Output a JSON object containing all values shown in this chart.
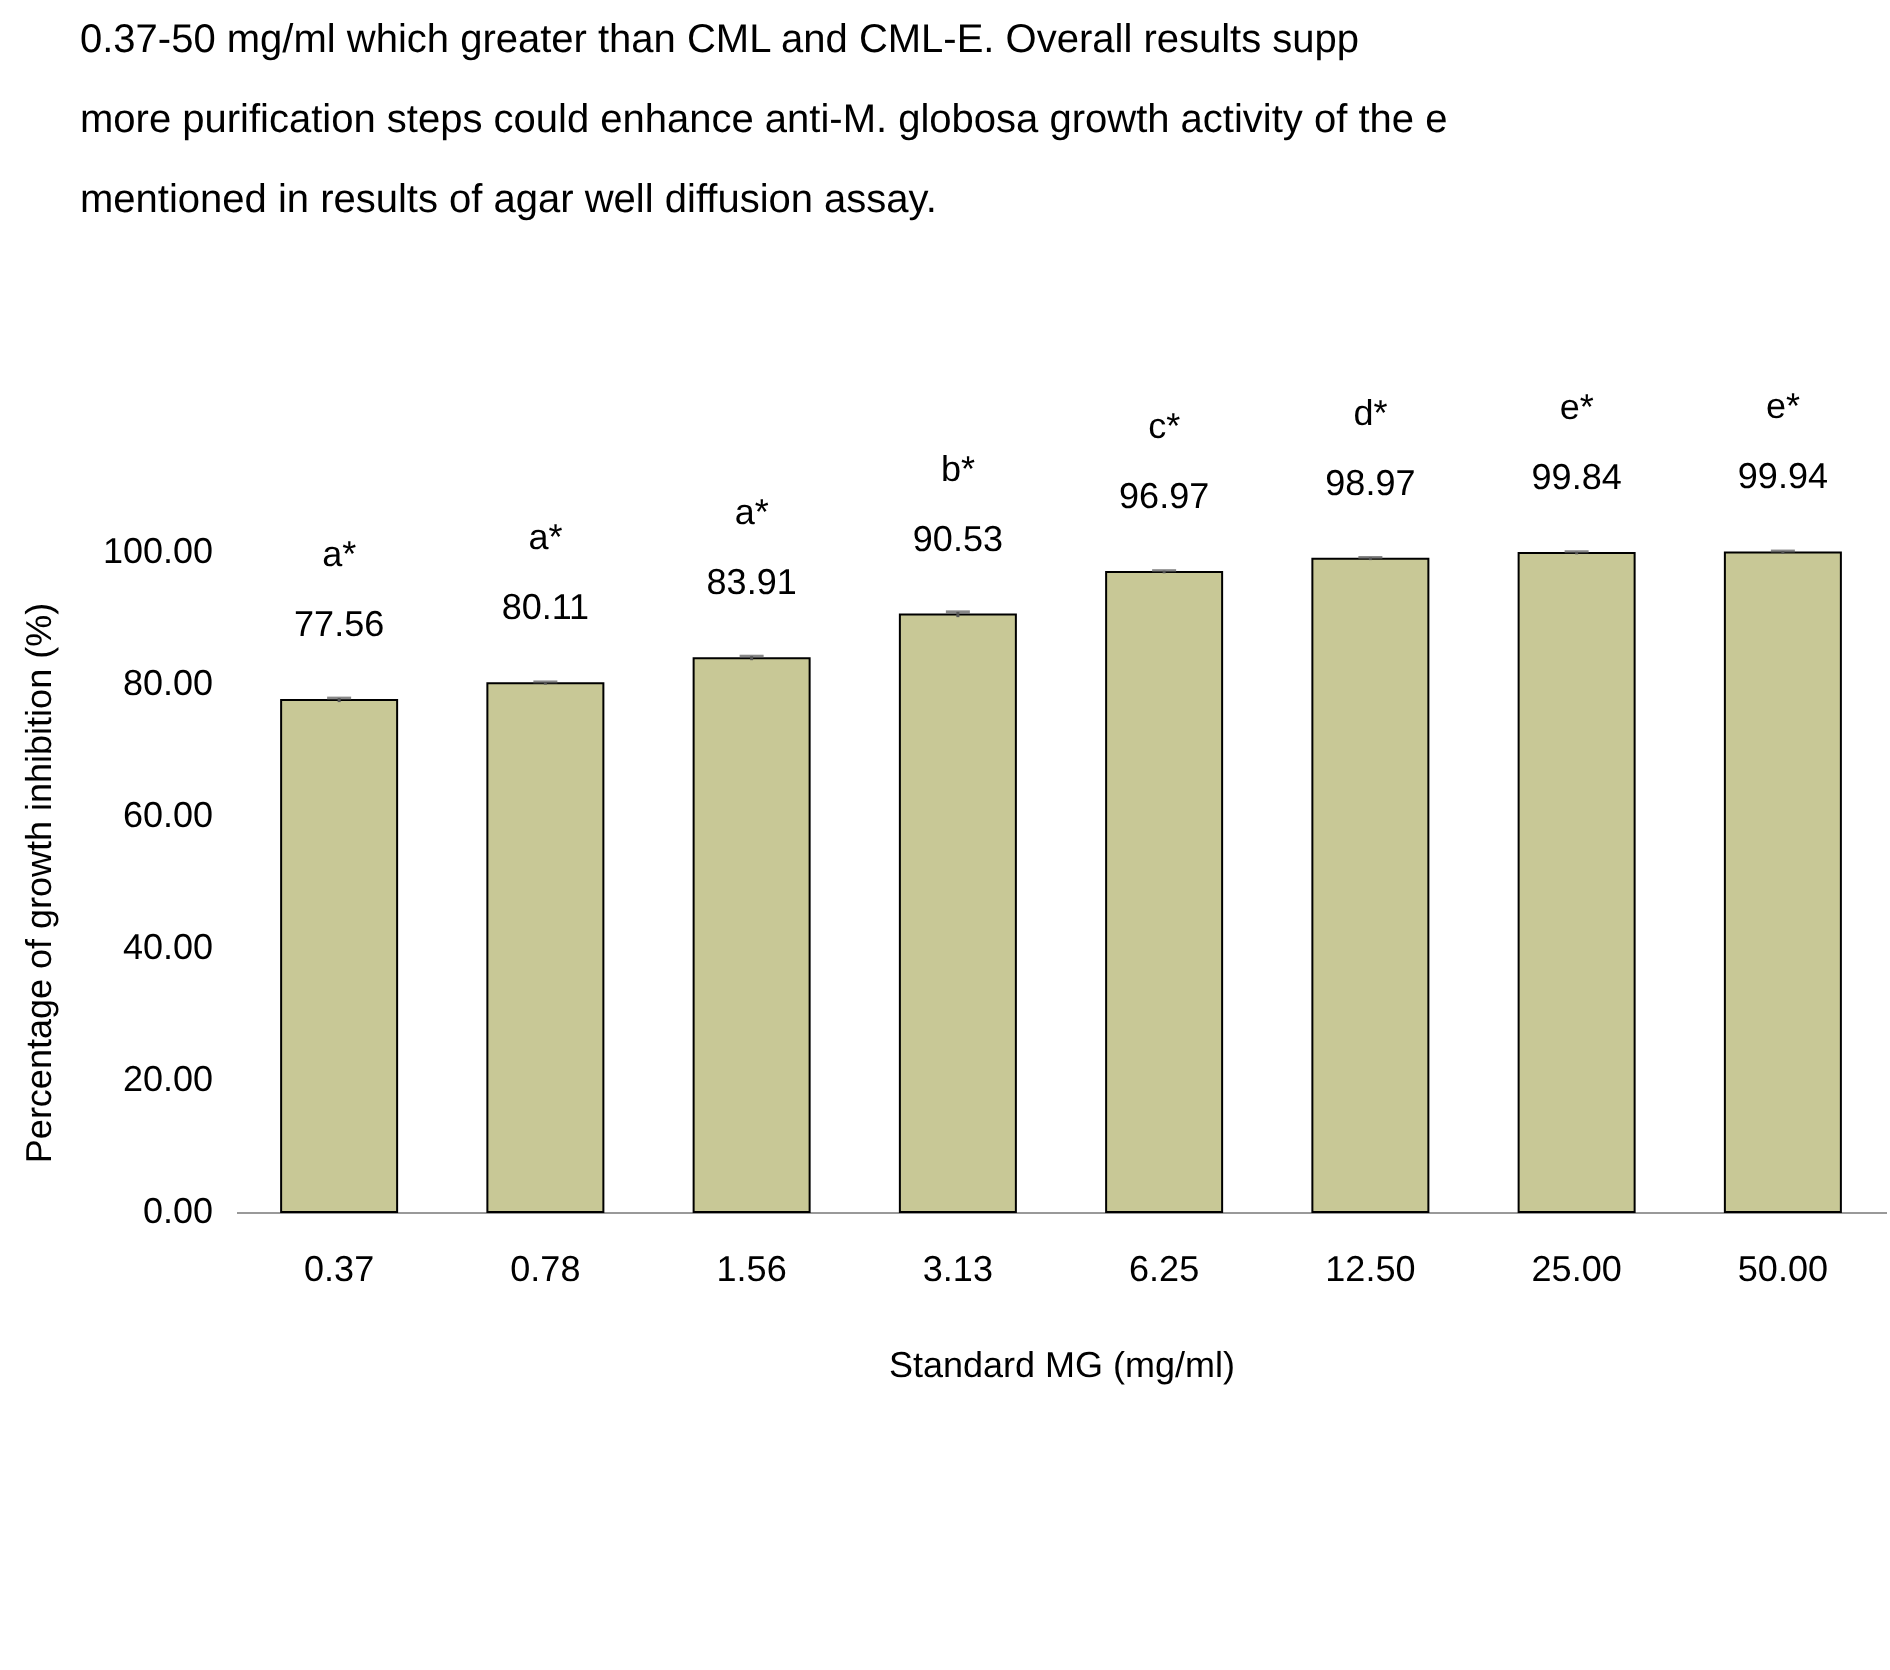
{
  "chart_data": {
    "type": "bar",
    "xlabel": "Standard MG   (mg/ml)",
    "ylabel": "Percentage of growth inhibition (%)",
    "categories": [
      "0.37",
      "0.78",
      "1.56",
      "3.13",
      "6.25",
      "12.50",
      "25.00",
      "50.00"
    ],
    "values": [
      77.56,
      80.11,
      83.91,
      90.53,
      96.97,
      98.97,
      99.84,
      99.94
    ],
    "errors": [
      0.3,
      0.2,
      0.3,
      0.4,
      0.2,
      0.2,
      0.2,
      0.2
    ],
    "color": "#c8c896",
    "ylim": [
      0,
      100
    ],
    "yticks": [
      {
        "value": 0,
        "label": "0.00"
      },
      {
        "value": 20,
        "label": "20.00"
      },
      {
        "value": 40,
        "label": "40.00"
      },
      {
        "value": 60,
        "label": "60.00"
      },
      {
        "value": 80,
        "label": "80.00"
      },
      {
        "value": 100,
        "label": "100.00"
      }
    ],
    "grid": false,
    "data_labels": true,
    "annotations": [
      "0.37-50 mg/ml which greater than CML and CML-E. Overall results supp",
      "more purification steps could enhance anti-M. globosa growth activity of the e",
      "mentioned in results of agar well diffusion assay.",
      "a*",
      "a*",
      "a*",
      "b*",
      "c*",
      "d*",
      "e*",
      "e*"
    ]
  }
}
